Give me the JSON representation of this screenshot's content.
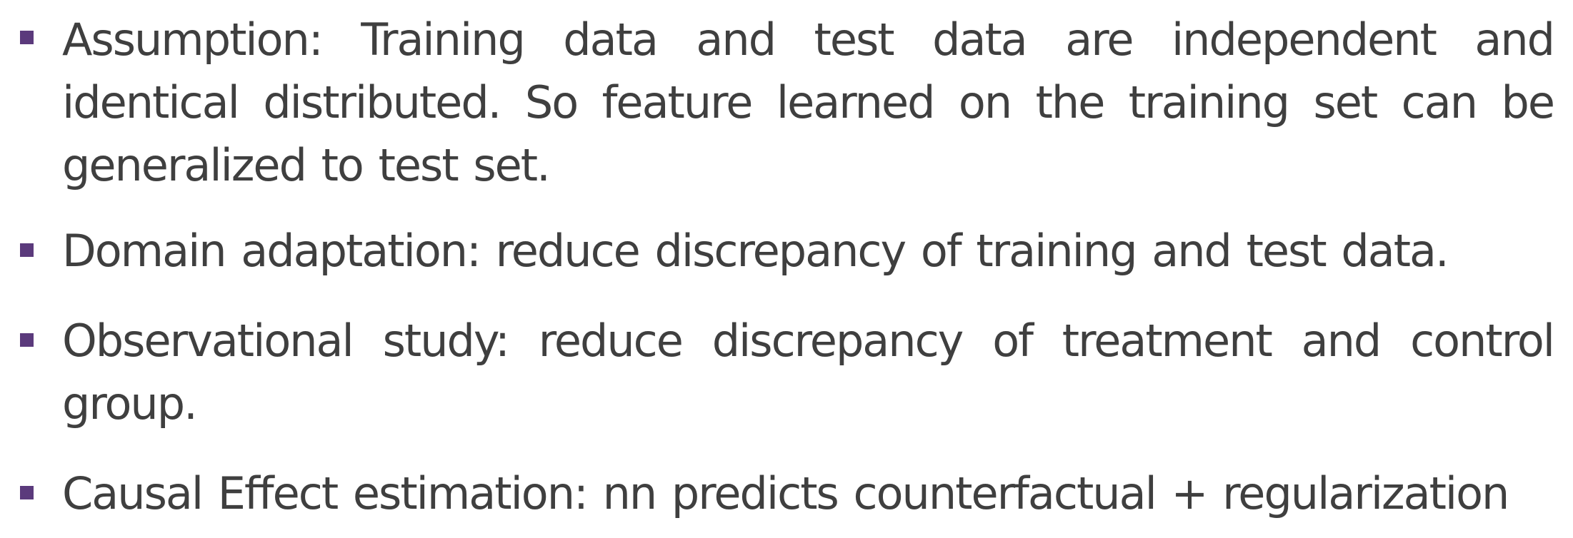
{
  "slide": {
    "bullets": [
      {
        "text": "Assumption: Training data and test data are independent and identical distributed. So feature learned on the training set can be generalized to test set."
      },
      {
        "text": "Domain adaptation: reduce discrepancy of training and test data."
      },
      {
        "text": "Observational study: reduce discrepancy of treatment and control group."
      },
      {
        "text": "Causal Effect estimation: nn predicts counterfactual + regularization"
      }
    ],
    "colors": {
      "bullet": "#5b3a7c",
      "text": "#3f3f3f",
      "background": "#ffffff"
    }
  }
}
